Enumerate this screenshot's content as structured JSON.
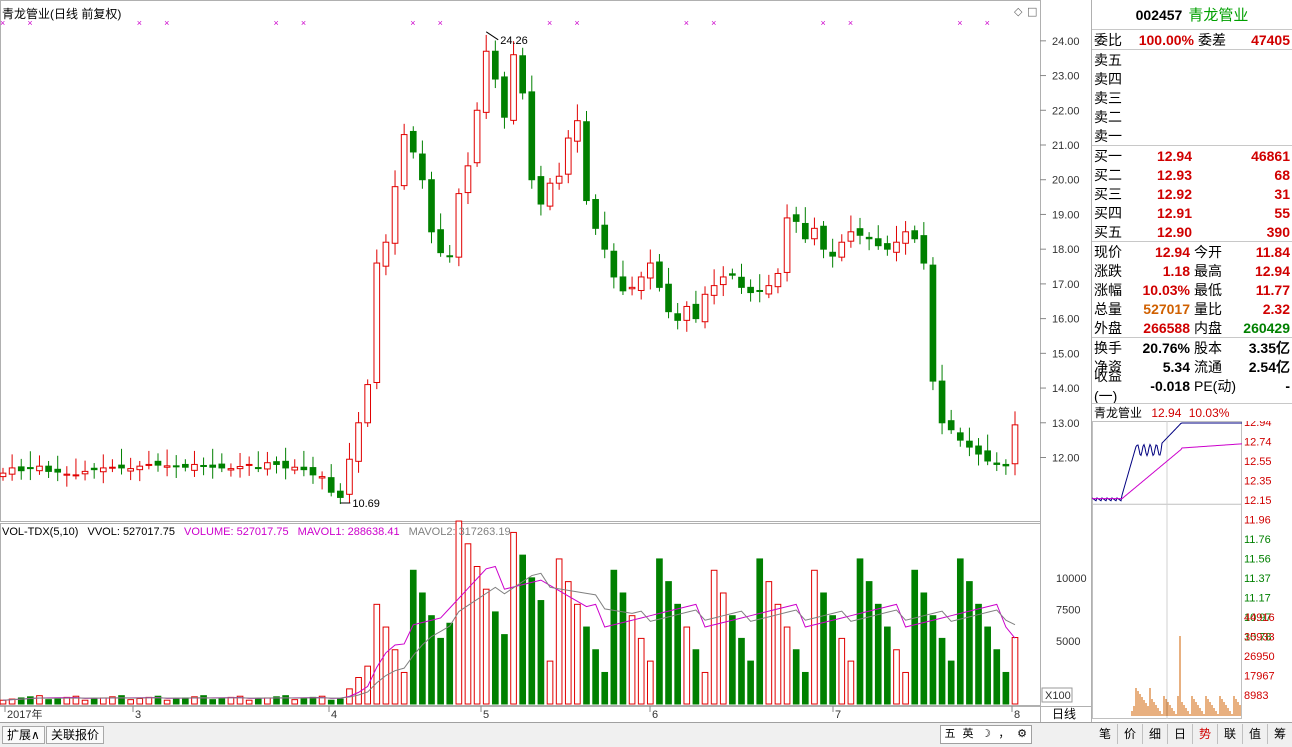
{
  "stock": {
    "code": "002457",
    "name": "青龙管业",
    "title": "青龙管业(日线 前复权)"
  },
  "kline": {
    "price_ticks": [
      "24.00",
      "23.00",
      "22.00",
      "21.00",
      "20.00",
      "19.00",
      "18.00",
      "17.00",
      "16.00",
      "15.00",
      "14.00",
      "13.00",
      "12.00"
    ],
    "high_label": "24.26",
    "low_label": "10.69",
    "months": [
      "2017年",
      "3",
      "4",
      "5",
      "6",
      "7",
      "8"
    ],
    "right_label": "日线",
    "vol_scale_label": "X100"
  },
  "volume": {
    "indicator": "VOL-TDX(5,10)",
    "vvol": "VVOL: 527017.75",
    "volume": "VOLUME: 527017.75",
    "mavol1": "MAVOL1: 288638.41",
    "mavol2": "MAVOL2: 317263.19",
    "ticks": [
      "10000",
      "7500",
      "5000"
    ]
  },
  "quote": {
    "weibi_label": "委比",
    "weibi": "100.00%",
    "weicha_label": "委差",
    "weicha": "47405",
    "sell": [
      {
        "label": "卖五"
      },
      {
        "label": "卖四"
      },
      {
        "label": "卖三"
      },
      {
        "label": "卖二"
      },
      {
        "label": "卖一"
      }
    ],
    "buy": [
      {
        "label": "买一",
        "price": "12.94",
        "qty": "46861"
      },
      {
        "label": "买二",
        "price": "12.93",
        "qty": "68"
      },
      {
        "label": "买三",
        "price": "12.92",
        "qty": "31"
      },
      {
        "label": "买四",
        "price": "12.91",
        "qty": "55"
      },
      {
        "label": "买五",
        "price": "12.90",
        "qty": "390"
      }
    ],
    "stats": [
      {
        "l1": "现价",
        "v1": "12.94",
        "c1": "red",
        "l2": "今开",
        "v2": "11.84",
        "c2": "red"
      },
      {
        "l1": "涨跌",
        "v1": "1.18",
        "c1": "red",
        "l2": "最高",
        "v2": "12.94",
        "c2": "red"
      },
      {
        "l1": "涨幅",
        "v1": "10.03%",
        "c1": "red",
        "l2": "最低",
        "v2": "11.77",
        "c2": "red"
      },
      {
        "l1": "总量",
        "v1": "527017",
        "c1": "orange",
        "l2": "量比",
        "v2": "2.32",
        "c2": "red"
      },
      {
        "l1": "外盘",
        "v1": "266588",
        "c1": "red",
        "l2": "内盘",
        "v2": "260429",
        "c2": "green"
      }
    ],
    "fin": [
      {
        "l1": "换手",
        "v1": "20.76%",
        "l2": "股本",
        "v2": "3.35亿"
      },
      {
        "l1": "净资",
        "v1": "5.34",
        "l2": "流通",
        "v2": "2.54亿"
      },
      {
        "l1": "收益(一)",
        "v1": "-0.018",
        "l2": "PE(动)",
        "v2": "-"
      }
    ]
  },
  "mini": {
    "name": "青龙管业",
    "price": "12.94",
    "pct": "10.03%",
    "price_ticks": [
      "12.94",
      "12.74",
      "12.55",
      "12.35",
      "12.15",
      "11.96",
      "11.76",
      "11.56",
      "11.37",
      "11.17",
      "10.97",
      "10.78"
    ],
    "vol_ticks": [
      "44916",
      "35933",
      "26950",
      "17967",
      "8983"
    ]
  },
  "bottom": {
    "expand": "扩展∧",
    "related": "关联报价",
    "ime": [
      "五",
      "英",
      "☽",
      "，",
      "⚙"
    ],
    "tabs": [
      "笔",
      "价",
      "细",
      "日",
      "势",
      "联",
      "值",
      "筹"
    ]
  },
  "colors": {
    "up": "#e00000",
    "down": "#008000",
    "ma1": "#cc00cc",
    "ma2": "#808080",
    "axis": "#c0c0c0"
  }
}
